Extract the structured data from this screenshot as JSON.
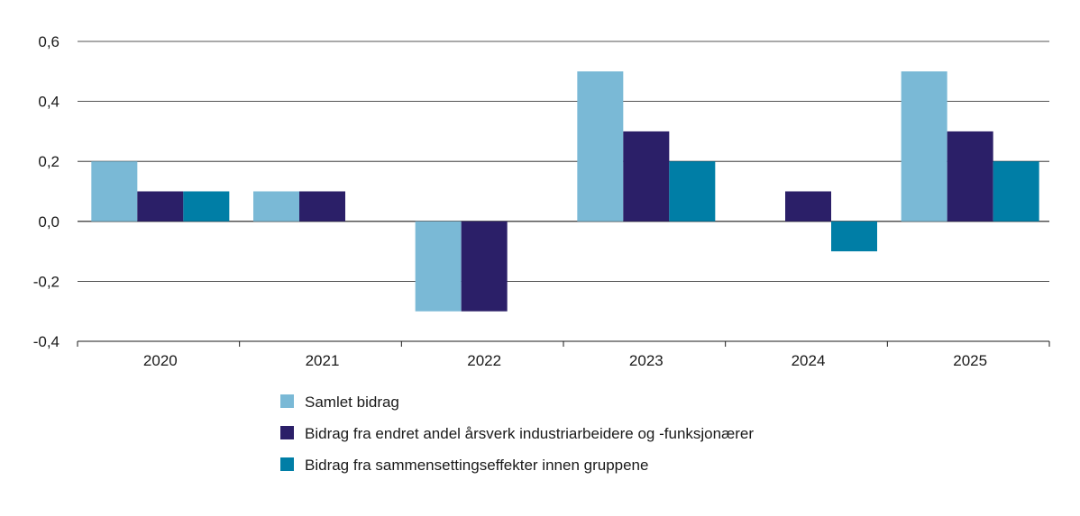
{
  "chart_data": {
    "type": "bar",
    "title": "",
    "xlabel": "",
    "ylabel": "",
    "categories": [
      "2020",
      "2021",
      "2022",
      "2023",
      "2024",
      "2025"
    ],
    "ylim": [
      -0.4,
      0.6
    ],
    "yticks": [
      0.6,
      0.4,
      0.2,
      0.0,
      -0.2,
      -0.4
    ],
    "ytick_labels": [
      "0,6",
      "0,4",
      "0,2",
      "0,0",
      "-0,2",
      "-0,4"
    ],
    "grid": true,
    "legend_position": "bottom",
    "series": [
      {
        "name": "Samlet bidrag",
        "color": "#7ab9d6",
        "values": [
          0.2,
          0.1,
          -0.3,
          0.5,
          null,
          0.5
        ]
      },
      {
        "name": "Bidrag fra endret andel årsverk industriarbeidere og -funksjonærer",
        "color": "#2b1f68",
        "values": [
          0.1,
          0.1,
          -0.3,
          0.3,
          0.1,
          0.3
        ]
      },
      {
        "name": "Bidrag fra sammensettingseffekter innen gruppene",
        "color": "#007ea6",
        "values": [
          0.1,
          null,
          null,
          0.2,
          -0.1,
          0.2
        ]
      }
    ]
  }
}
